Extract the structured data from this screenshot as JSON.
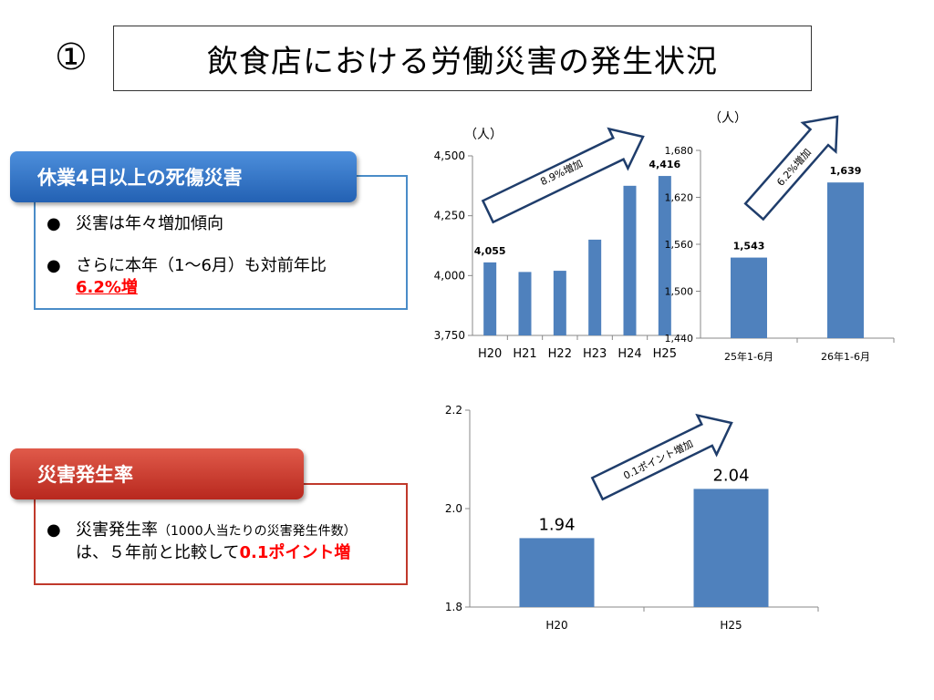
{
  "header": {
    "number": "①",
    "title": "飲食店における労働災害の発生状況"
  },
  "panel1": {
    "heading": "休業4日以上の死傷災害",
    "bullet_symbol": "●",
    "bullet1": "災害は年々増加傾向",
    "bullet2_line1": "さらに本年（1～6月）も対前年比",
    "bullet2_emphasis": "6.2%増"
  },
  "panel2": {
    "heading": "災害発生率",
    "bullet_symbol": "●",
    "line1_text": "災害発生率",
    "line1_small": "（1000人当たりの災害発生件数）",
    "line2_text": "は、５年前と比較して",
    "line2_emphasis": "0.1ポイント増"
  },
  "colors": {
    "bar": "#4f81bd",
    "axis": "#888888",
    "arrow_stroke": "#1f3d6b",
    "panel1": "#2361b3",
    "panel2": "#b8281e",
    "emphasis": "#ff0000"
  },
  "chart_data": [
    {
      "type": "bar",
      "ylabel": "（人）",
      "categories": [
        "H20",
        "H21",
        "H22",
        "H23",
        "H24",
        "H25"
      ],
      "values": [
        4055,
        4015,
        4020,
        4150,
        4375,
        4416
      ],
      "data_labels": {
        "H20": "4,055",
        "H25": "4,416"
      },
      "ylim": [
        3750,
        4500
      ],
      "yticks": [
        "3,750",
        "4,000",
        "4,250",
        "4,500"
      ],
      "ytick_values": [
        3750,
        4000,
        4250,
        4500
      ],
      "annotation": "8.9%増加",
      "grid": false
    },
    {
      "type": "bar",
      "ylabel": "（人）",
      "categories": [
        "25年1-6月",
        "26年1-6月"
      ],
      "values": [
        1543,
        1639
      ],
      "data_labels": [
        "1,543",
        "1,639"
      ],
      "ylim": [
        1440,
        1680
      ],
      "yticks": [
        "1,440",
        "1,500",
        "1,560",
        "1,620",
        "1,680"
      ],
      "ytick_values": [
        1440,
        1500,
        1560,
        1620,
        1680
      ],
      "annotation": "6.2%増加",
      "grid": false
    },
    {
      "type": "bar",
      "categories": [
        "H20",
        "H25"
      ],
      "values": [
        1.94,
        2.04
      ],
      "data_labels": [
        "1.94",
        "2.04"
      ],
      "ylim": [
        1.8,
        2.2
      ],
      "yticks": [
        "1.8",
        "2.0",
        "2.2"
      ],
      "ytick_values": [
        1.8,
        2.0,
        2.2
      ],
      "annotation": "0.1ポイント増加",
      "grid": false
    }
  ]
}
